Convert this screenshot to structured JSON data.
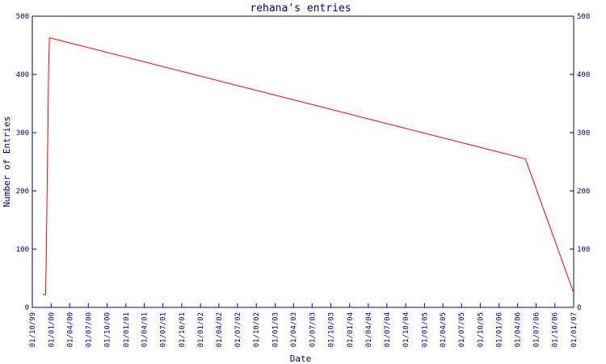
{
  "chart_data": {
    "type": "line",
    "title": "rehana's entries",
    "xlabel": "Date",
    "ylabel": "Number of Entries",
    "ylim": [
      0,
      500
    ],
    "y_ticks": [
      0,
      100,
      200,
      300,
      400,
      500
    ],
    "x_ticks": [
      "01/10/99",
      "01/01/00",
      "01/04/00",
      "01/07/00",
      "01/10/00",
      "01/01/01",
      "01/04/01",
      "01/07/01",
      "01/10/01",
      "01/01/02",
      "01/04/02",
      "01/07/02",
      "01/10/02",
      "01/01/03",
      "01/04/03",
      "01/07/03",
      "01/10/03",
      "01/01/04",
      "01/04/04",
      "01/07/04",
      "01/10/04",
      "01/01/05",
      "01/04/05",
      "01/07/05",
      "01/10/05",
      "01/01/06",
      "01/04/06",
      "01/07/06",
      "01/10/06",
      "01/01/07"
    ],
    "grid": false,
    "colors": {
      "axis": "#000080",
      "line": "#ff0000",
      "background": "#ffffff"
    },
    "series": [
      {
        "points": [
          {
            "x": "1999-11-20",
            "y": 22
          },
          {
            "x": "1999-12-05",
            "y": 22
          },
          {
            "x": "1999-12-08",
            "y": 80
          },
          {
            "x": "1999-12-12",
            "y": 190
          },
          {
            "x": "1999-12-16",
            "y": 300
          },
          {
            "x": "1999-12-20",
            "y": 410
          },
          {
            "x": "1999-12-24",
            "y": 463
          },
          {
            "x": "2006-05-10",
            "y": 255
          },
          {
            "x": "2007-01-01",
            "y": 25
          }
        ]
      }
    ]
  }
}
